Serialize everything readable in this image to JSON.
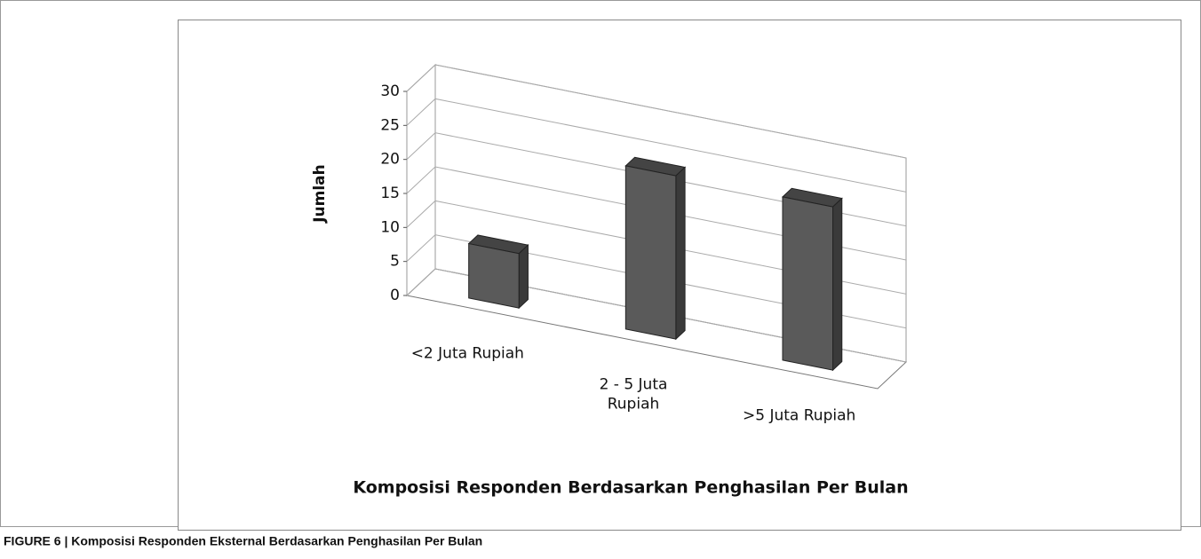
{
  "chart_data": {
    "type": "bar3d",
    "title": "Komposisi Responden Berdasarkan Penghasilan Per Bulan",
    "caption": "FIGURE 6 | Komposisi Responden Eksternal Berdasarkan Penghasilan Per Bulan",
    "y_label": "Jumlah",
    "categories": [
      "<2 Juta Rupiah",
      "2 - 5 Juta Rupiah",
      ">5 Juta Rupiah"
    ],
    "values": [
      8,
      24,
      24
    ],
    "color": "#5a5a5a",
    "ylim": [
      0,
      30
    ],
    "yticks": [
      0,
      5,
      10,
      15,
      20,
      25,
      30
    ],
    "grid": true
  }
}
